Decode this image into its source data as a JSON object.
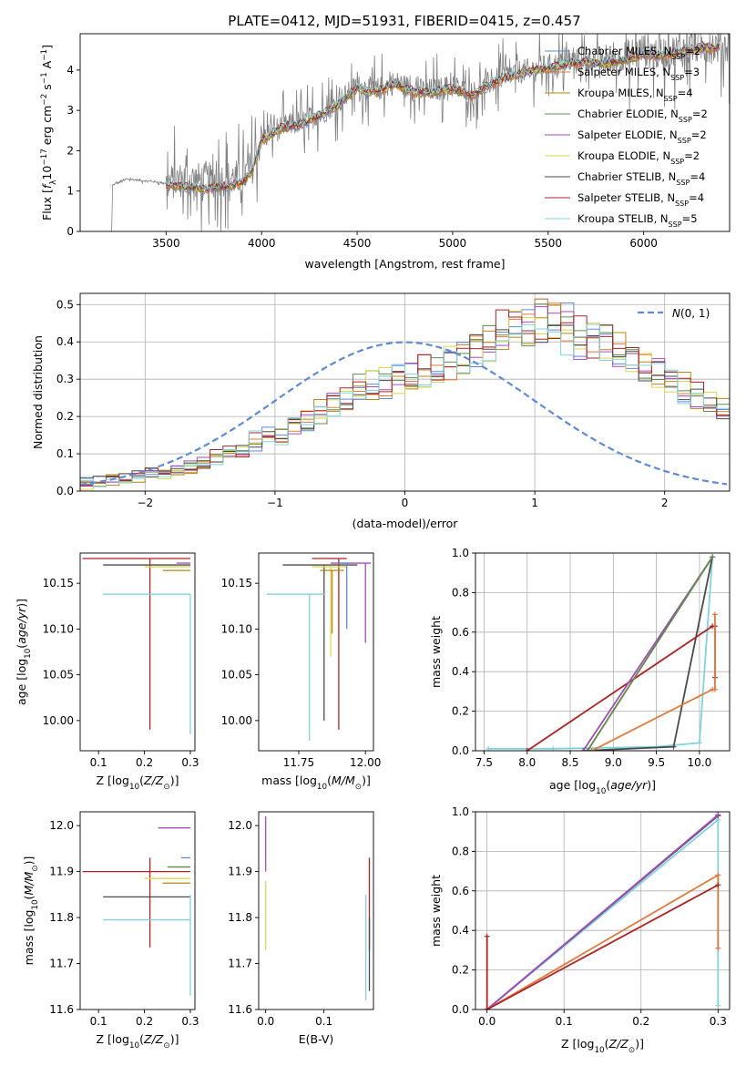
{
  "figure": {
    "title": "PLATE=0412, MJD=51931, FIBERID=0415, z=0.457"
  },
  "colors": {
    "Chabrier MILES": "#5b8bd9",
    "Salpeter MILES": "#e07a3a",
    "Kroupa MILES": "#b8860b",
    "Chabrier ELODIE": "#5e8c4e",
    "Salpeter ELODIE": "#a64bbf",
    "Kroupa ELODIE": "#d9d84a",
    "Chabrier STELIB": "#4a4a4a",
    "Salpeter STELIB": "#b22222",
    "Kroupa STELIB": "#7fd3de",
    "gaussian": "#5b8bd9",
    "observed": "#808080"
  },
  "legend_spectrum": [
    "Chabrier MILES, N_SSP=2",
    "Salpeter MILES, N_SSP=3",
    "Kroupa MILES, N_SSP=4",
    "Chabrier ELODIE, N_SSP=2",
    "Salpeter ELODIE, N_SSP=2",
    "Kroupa ELODIE, N_SSP=2",
    "Chabrier STELIB, N_SSP=4",
    "Salpeter STELIB, N_SSP=4",
    "Kroupa STELIB, N_SSP=5"
  ],
  "legend_hist": "N(0,1)",
  "chart_data": [
    {
      "id": "spectrum",
      "type": "line",
      "title": "PLATE=0412, MJD=51931, FIBERID=0415, z=0.457",
      "xlabel": "wavelength [Angstrom, rest frame]",
      "ylabel": "Flux [f_λ 10^-17 erg cm^-2 s^-1 A^-1]",
      "xlim": [
        3050,
        6450
      ],
      "ylim": [
        0,
        4.9
      ],
      "xticks": [
        3500,
        4000,
        4500,
        5000,
        5500,
        6000
      ],
      "yticks": [
        0,
        1,
        2,
        3,
        4
      ],
      "grid": false,
      "legend_position": "top-right",
      "observed_continuum": {
        "x": [
          3220,
          3300,
          3400,
          3500,
          3600,
          3700,
          3800,
          3900,
          3950,
          4000,
          4100,
          4200,
          4300,
          4400,
          4500,
          4600,
          4700,
          4800,
          4900,
          5000,
          5100,
          5200,
          5300,
          5400,
          5500,
          5600,
          5700,
          5800,
          5900,
          6000,
          6100,
          6200,
          6300
        ],
        "y": [
          1.15,
          1.3,
          1.25,
          1.2,
          1.3,
          1.25,
          1.3,
          1.35,
          1.6,
          2.3,
          2.6,
          2.7,
          2.9,
          3.2,
          3.6,
          3.5,
          3.7,
          3.5,
          3.5,
          3.6,
          3.4,
          3.7,
          3.9,
          4.0,
          4.1,
          4.2,
          4.3,
          4.2,
          4.3,
          4.5,
          4.4,
          4.5,
          4.6
        ]
      },
      "model_continuum": {
        "x": [
          3500,
          3600,
          3700,
          3800,
          3900,
          3950,
          4000,
          4100,
          4200,
          4300,
          4400,
          4500,
          4600,
          4700,
          4800,
          4900,
          5000,
          5100,
          5200,
          5300,
          5400,
          5500,
          5600,
          5700,
          5800,
          5900,
          6000,
          6100,
          6200,
          6300
        ],
        "y": [
          1.15,
          1.1,
          1.05,
          1.1,
          1.2,
          1.5,
          2.25,
          2.55,
          2.65,
          2.85,
          3.15,
          3.55,
          3.45,
          3.65,
          3.45,
          3.45,
          3.55,
          3.35,
          3.65,
          3.85,
          3.95,
          4.05,
          4.15,
          4.2,
          4.15,
          4.25,
          4.4,
          4.35,
          4.45,
          4.55
        ]
      }
    },
    {
      "id": "residual_histogram",
      "type": "line",
      "xlabel": "(data-model)/error",
      "ylabel": "Normed distribution",
      "xlim": [
        -2.5,
        2.5
      ],
      "ylim": [
        0,
        0.53
      ],
      "xticks": [
        -2,
        -1,
        0,
        1,
        2
      ],
      "yticks": [
        0.0,
        0.1,
        0.2,
        0.3,
        0.4,
        0.5
      ],
      "grid": true,
      "legend_position": "top-right",
      "bin_width": 0.1,
      "bins_start": -2.5,
      "base_values": [
        0.02,
        0.025,
        0.03,
        0.035,
        0.04,
        0.045,
        0.05,
        0.055,
        0.06,
        0.07,
        0.09,
        0.1,
        0.11,
        0.13,
        0.14,
        0.15,
        0.17,
        0.19,
        0.21,
        0.23,
        0.25,
        0.27,
        0.28,
        0.29,
        0.3,
        0.31,
        0.32,
        0.33,
        0.34,
        0.36,
        0.38,
        0.4,
        0.42,
        0.44,
        0.45,
        0.46,
        0.44,
        0.43,
        0.41,
        0.4,
        0.39,
        0.37,
        0.35,
        0.33,
        0.31,
        0.29,
        0.27,
        0.25,
        0.23,
        0.21
      ],
      "gaussian": {
        "mean": 0,
        "sigma": 1
      }
    },
    {
      "id": "age_vs_Z",
      "type": "scatter",
      "xlabel": "Z [log10(Z/Z⊙)]",
      "ylabel": "age [log10(age/yr)]",
      "xlim": [
        0.06,
        0.31
      ],
      "ylim": [
        9.967,
        10.183
      ],
      "xticks": [
        0.1,
        0.2,
        0.3
      ],
      "yticks": [
        10.0,
        10.05,
        10.1,
        10.15
      ],
      "grid": false,
      "points": [
        {
          "series": "Salpeter STELIB",
          "x": 0.212,
          "y": 10.177,
          "xlo": 0.065,
          "xhi": 0.3,
          "ylo": 9.99,
          "yhi": 10.177
        },
        {
          "series": "Chabrier STELIB",
          "x": 0.3,
          "y": 10.17,
          "xlo": 0.11,
          "xhi": 0.3,
          "ylo": 10.17,
          "yhi": 10.17
        },
        {
          "series": "Kroupa ELODIE",
          "x": 0.3,
          "y": 10.168,
          "xlo": 0.2,
          "xhi": 0.3,
          "ylo": 10.168,
          "yhi": 10.168
        },
        {
          "series": "Kroupa MILES",
          "x": 0.3,
          "y": 10.164,
          "xlo": 0.24,
          "xhi": 0.3,
          "ylo": 10.164,
          "yhi": 10.164
        },
        {
          "series": "Salpeter ELODIE",
          "x": 0.3,
          "y": 10.172,
          "xlo": 0.27,
          "xhi": 0.3,
          "ylo": 10.172,
          "yhi": 10.172
        },
        {
          "series": "Kroupa STELIB",
          "x": 0.3,
          "y": 10.138,
          "xlo": 0.11,
          "xhi": 0.3,
          "ylo": 9.985,
          "yhi": 10.138
        }
      ]
    },
    {
      "id": "age_vs_mass",
      "type": "scatter",
      "xlabel": "mass [log10(M/M⊙)]",
      "ylabel": "",
      "xlim": [
        11.6,
        12.03
      ],
      "ylim": [
        9.967,
        10.183
      ],
      "xticks": [
        11.75,
        12.0
      ],
      "yticks": [
        10.0,
        10.05,
        10.1,
        10.15
      ],
      "grid": false,
      "points": [
        {
          "series": "Chabrier STELIB",
          "x": 11.845,
          "y": 10.17,
          "xlo": 11.69,
          "xhi": 11.97,
          "ylo": 10.0,
          "yhi": 10.17
        },
        {
          "series": "Salpeter STELIB",
          "x": 11.9,
          "y": 10.177,
          "xlo": 11.8,
          "xhi": 11.93,
          "ylo": 9.99,
          "yhi": 10.177
        },
        {
          "series": "Kroupa STELIB",
          "x": 11.79,
          "y": 10.138,
          "xlo": 11.63,
          "xhi": 11.85,
          "ylo": 9.978,
          "yhi": 10.138
        },
        {
          "series": "Kroupa ELODIE",
          "x": 11.87,
          "y": 10.168,
          "xlo": 11.8,
          "xhi": 11.93,
          "ylo": 10.07,
          "yhi": 10.168
        },
        {
          "series": "Salpeter ELODIE",
          "x": 12.0,
          "y": 10.172,
          "xlo": 11.87,
          "xhi": 12.02,
          "ylo": 10.085,
          "yhi": 10.172
        },
        {
          "series": "Kroupa MILES",
          "x": 11.875,
          "y": 10.164,
          "xlo": 11.83,
          "xhi": 11.92,
          "ylo": 10.095,
          "yhi": 10.164
        },
        {
          "series": "Chabrier MILES",
          "x": 11.93,
          "y": 10.172,
          "xlo": 11.9,
          "xhi": 11.94,
          "ylo": 10.1,
          "yhi": 10.172
        }
      ]
    },
    {
      "id": "massweight_vs_age",
      "type": "line",
      "xlabel": "age [log10(age/yr)]",
      "ylabel": "mass weight",
      "xlim": [
        7.4,
        10.35
      ],
      "ylim": [
        0,
        1.0
      ],
      "xticks": [
        7.5,
        8.0,
        8.5,
        9.0,
        9.5,
        10.0
      ],
      "yticks": [
        0.0,
        0.2,
        0.4,
        0.6,
        0.8,
        1.0
      ],
      "grid": true,
      "series": [
        {
          "name": "Kroupa STELIB",
          "x": [
            7.55,
            8.3,
            9.5,
            10.0,
            10.15
          ],
          "y": [
            0.01,
            0.01,
            0.02,
            0.04,
            0.98
          ]
        },
        {
          "name": "Chabrier STELIB",
          "x": [
            8.65,
            9.7,
            10.15
          ],
          "y": [
            0.0,
            0.02,
            0.98
          ]
        },
        {
          "name": "Salpeter STELIB",
          "x": [
            8.0,
            10.15,
            10.18,
            10.18
          ],
          "y": [
            0.0,
            0.63,
            0.63,
            0.37
          ]
        },
        {
          "name": "Salpeter MILES",
          "x": [
            8.75,
            10.15,
            10.18,
            10.18
          ],
          "y": [
            0.0,
            0.31,
            0.31,
            0.69
          ]
        },
        {
          "name": "Kroupa ELODIE",
          "x": [
            8.7,
            10.15
          ],
          "y": [
            0.0,
            0.98
          ]
        },
        {
          "name": "Salpeter ELODIE",
          "x": [
            8.65,
            10.15
          ],
          "y": [
            0.0,
            0.98
          ]
        },
        {
          "name": "Chabrier ELODIE",
          "x": [
            8.7,
            10.15
          ],
          "y": [
            0.0,
            0.98
          ]
        }
      ]
    },
    {
      "id": "mass_vs_Z",
      "type": "scatter",
      "xlabel": "Z [log10(Z/Z⊙)]",
      "ylabel": "mass [log10(M/M⊙)]",
      "xlim": [
        0.06,
        0.31
      ],
      "ylim": [
        11.6,
        12.03
      ],
      "xticks": [
        0.1,
        0.2,
        0.3
      ],
      "yticks": [
        11.6,
        11.7,
        11.8,
        11.9,
        12.0
      ],
      "grid": false,
      "points": [
        {
          "series": "Salpeter STELIB",
          "x": 0.212,
          "y": 11.9,
          "xlo": 0.065,
          "xhi": 0.3,
          "ylo": 11.735,
          "yhi": 11.93
        },
        {
          "series": "Chabrier STELIB",
          "x": 0.3,
          "y": 11.845,
          "xlo": 0.11,
          "xhi": 0.3,
          "ylo": 11.845,
          "yhi": 11.845
        },
        {
          "series": "Kroupa STELIB",
          "x": 0.3,
          "y": 11.795,
          "xlo": 0.11,
          "xhi": 0.3,
          "ylo": 11.63,
          "yhi": 11.85
        },
        {
          "series": "Kroupa ELODIE",
          "x": 0.3,
          "y": 11.885,
          "xlo": 0.2,
          "xhi": 0.3,
          "ylo": 11.885,
          "yhi": 11.885
        },
        {
          "series": "Kroupa MILES",
          "x": 0.3,
          "y": 11.875,
          "xlo": 0.24,
          "xhi": 0.3,
          "ylo": 11.875,
          "yhi": 11.875
        },
        {
          "series": "Salpeter ELODIE",
          "x": 0.3,
          "y": 11.995,
          "xlo": 0.23,
          "xhi": 0.3,
          "ylo": 11.995,
          "yhi": 11.995
        },
        {
          "series": "Chabrier ELODIE",
          "x": 0.3,
          "y": 11.91,
          "xlo": 0.25,
          "xhi": 0.3,
          "ylo": 11.91,
          "yhi": 11.91
        },
        {
          "series": "Chabrier MILES",
          "x": 0.3,
          "y": 11.93,
          "xlo": 0.28,
          "xhi": 0.3,
          "ylo": 11.93,
          "yhi": 11.93
        }
      ]
    },
    {
      "id": "mass_vs_ebv",
      "type": "scatter",
      "xlabel": "E(B-V)",
      "ylabel": "",
      "xlim": [
        -0.012,
        0.185
      ],
      "ylim": [
        11.6,
        12.03
      ],
      "xticks": [
        0.0,
        0.1
      ],
      "yticks": [
        11.6,
        11.7,
        11.8,
        11.9,
        12.0
      ],
      "grid": false,
      "points": [
        {
          "series": "Salpeter ELODIE",
          "x": 0.0,
          "y": 11.97,
          "ylo": 11.9,
          "yhi": 12.02
        },
        {
          "series": "Kroupa ELODIE",
          "x": 0.0,
          "y": 11.8,
          "ylo": 11.73,
          "yhi": 11.88
        },
        {
          "series": "Kroupa STELIB",
          "x": 0.172,
          "y": 11.73,
          "ylo": 11.62,
          "yhi": 11.85
        },
        {
          "series": "Salpeter STELIB",
          "x": 0.178,
          "y": 11.82,
          "ylo": 11.73,
          "yhi": 11.93
        },
        {
          "series": "Chabrier STELIB",
          "x": 0.178,
          "y": 11.72,
          "ylo": 11.64,
          "yhi": 11.8
        }
      ]
    },
    {
      "id": "massweight_vs_Z",
      "type": "line",
      "xlabel": "Z [log10(Z/Z⊙)]",
      "ylabel": "mass weight",
      "xlim": [
        -0.015,
        0.315
      ],
      "ylim": [
        0,
        1.0
      ],
      "xticks": [
        0.0,
        0.1,
        0.2,
        0.3
      ],
      "yticks": [
        0.0,
        0.2,
        0.4,
        0.6,
        0.8,
        1.0
      ],
      "grid": true,
      "series": [
        {
          "name": "Kroupa STELIB",
          "x": [
            0.0,
            0.3,
            0.3
          ],
          "y": [
            0.0,
            0.96,
            0.02
          ]
        },
        {
          "name": "Chabrier STELIB",
          "x": [
            0.0,
            0.3
          ],
          "y": [
            0.0,
            0.98
          ]
        },
        {
          "name": "Salpeter ELODIE",
          "x": [
            0.0,
            0.3
          ],
          "y": [
            0.0,
            0.985
          ]
        },
        {
          "name": "Salpeter MILES",
          "x": [
            0.0,
            0.3,
            0.3
          ],
          "y": [
            0.0,
            0.68,
            0.31
          ]
        },
        {
          "name": "Salpeter STELIB",
          "x": [
            0.0,
            0.0,
            0.0,
            0.3
          ],
          "y": [
            0.37,
            0.0,
            0.0,
            0.63
          ]
        }
      ]
    }
  ]
}
